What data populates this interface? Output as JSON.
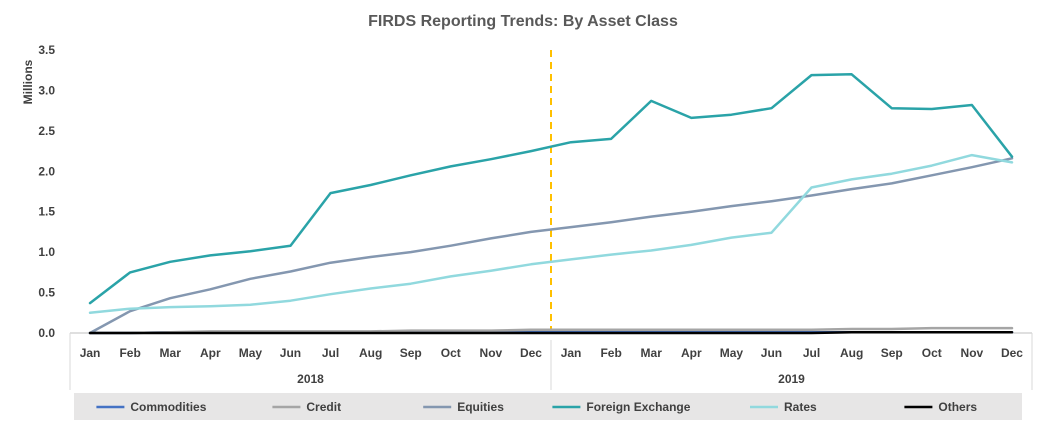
{
  "chart_data": {
    "type": "line",
    "title": "FIRDS Reporting Trends: By Asset Class",
    "ylabel": "Millions",
    "ylim": [
      0,
      3.5
    ],
    "yticks": [
      "0.0",
      "0.5",
      "1.0",
      "1.5",
      "2.0",
      "2.5",
      "3.0",
      "3.5"
    ],
    "categories": [
      "Jan",
      "Feb",
      "Mar",
      "Apr",
      "May",
      "Jun",
      "Jul",
      "Aug",
      "Sep",
      "Oct",
      "Nov",
      "Dec",
      "Jan",
      "Feb",
      "Mar",
      "Apr",
      "May",
      "Jun",
      "Jul",
      "Aug",
      "Sep",
      "Oct",
      "Nov",
      "Dec"
    ],
    "groups": [
      {
        "label": "2018",
        "span": 12
      },
      {
        "label": "2019",
        "span": 12
      }
    ],
    "series": [
      {
        "name": "Commodities",
        "color": "#4472c4",
        "values": [
          0.0,
          0.0,
          0.01,
          0.01,
          0.01,
          0.01,
          0.01,
          0.01,
          0.01,
          0.01,
          0.01,
          0.01,
          0.01,
          0.01,
          0.01,
          0.01,
          0.01,
          0.01,
          0.01,
          0.01,
          0.01,
          0.01,
          0.01,
          0.01
        ]
      },
      {
        "name": "Credit",
        "color": "#a5a5a5",
        "values": [
          0.0,
          0.0,
          0.01,
          0.02,
          0.02,
          0.02,
          0.02,
          0.02,
          0.03,
          0.03,
          0.03,
          0.04,
          0.04,
          0.04,
          0.04,
          0.04,
          0.04,
          0.04,
          0.04,
          0.05,
          0.05,
          0.06,
          0.06,
          0.06
        ]
      },
      {
        "name": "Equities",
        "color": "#8497b0",
        "values": [
          0.0,
          0.27,
          0.43,
          0.54,
          0.67,
          0.76,
          0.87,
          0.94,
          1.0,
          1.08,
          1.17,
          1.25,
          1.31,
          1.37,
          1.44,
          1.5,
          1.57,
          1.63,
          1.7,
          1.78,
          1.85,
          1.95,
          2.05,
          2.16
        ]
      },
      {
        "name": "Foreign Exchange",
        "color": "#2aa3a8",
        "values": [
          0.37,
          0.75,
          0.88,
          0.96,
          1.01,
          1.08,
          1.73,
          1.83,
          1.95,
          2.06,
          2.15,
          2.25,
          2.36,
          2.4,
          2.87,
          2.66,
          2.7,
          2.78,
          3.19,
          3.2,
          2.78,
          2.77,
          2.82,
          2.18
        ]
      },
      {
        "name": "Rates",
        "color": "#91d9de",
        "values": [
          0.25,
          0.3,
          0.32,
          0.33,
          0.35,
          0.4,
          0.48,
          0.55,
          0.61,
          0.7,
          0.77,
          0.85,
          0.91,
          0.97,
          1.02,
          1.09,
          1.18,
          1.24,
          1.8,
          1.9,
          1.97,
          2.07,
          2.2,
          2.11
        ]
      },
      {
        "name": "Others",
        "color": "#000000",
        "values": [
          0.0,
          0.0,
          0.0,
          0.0,
          0.0,
          0.0,
          0.0,
          0.0,
          0.0,
          0.0,
          0.0,
          0.0,
          0.0,
          0.0,
          0.0,
          0.0,
          0.0,
          0.0,
          0.0,
          0.01,
          0.01,
          0.01,
          0.01,
          0.01
        ]
      }
    ],
    "divider_after_index": 11,
    "divider_color": "#ffc000",
    "grid": false,
    "legend_position": "bottom"
  }
}
